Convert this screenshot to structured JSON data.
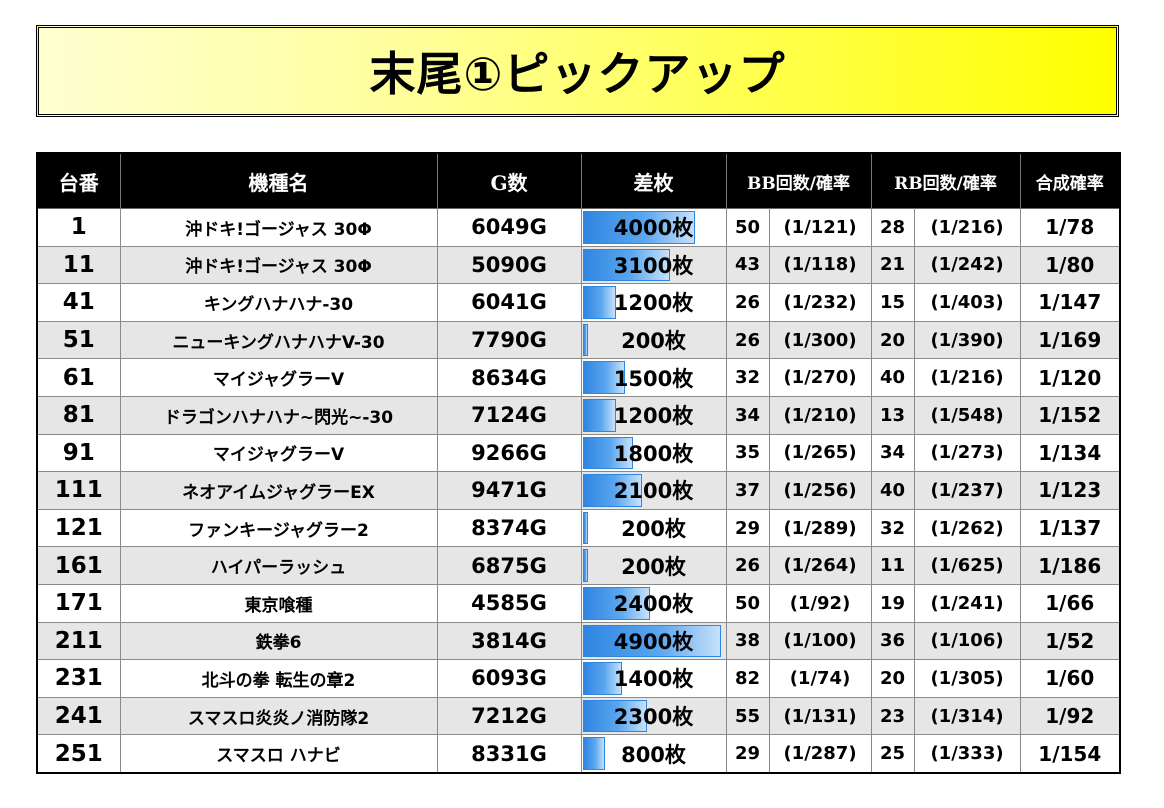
{
  "title": "末尾①ピックアップ",
  "headers": {
    "no": "台番",
    "name": "機種名",
    "games": "G数",
    "diff": "差枚",
    "bb": "BB回数/確率",
    "rb": "RB回数/確率",
    "combined": "合成確率"
  },
  "diff_max": 4900,
  "rows": [
    {
      "no": "1",
      "name": "沖ドキ!ゴージャス 30Φ",
      "games": "6049G",
      "diff": "4000枚",
      "diff_value": 4000,
      "bb_count": "50",
      "bb_rate": "(1/121)",
      "rb_count": "28",
      "rb_rate": "(1/216)",
      "combined": "1/78"
    },
    {
      "no": "11",
      "name": "沖ドキ!ゴージャス 30Φ",
      "games": "5090G",
      "diff": "3100枚",
      "diff_value": 3100,
      "bb_count": "43",
      "bb_rate": "(1/118)",
      "rb_count": "21",
      "rb_rate": "(1/242)",
      "combined": "1/80"
    },
    {
      "no": "41",
      "name": "キングハナハナ-30",
      "games": "6041G",
      "diff": "1200枚",
      "diff_value": 1200,
      "bb_count": "26",
      "bb_rate": "(1/232)",
      "rb_count": "15",
      "rb_rate": "(1/403)",
      "combined": "1/147"
    },
    {
      "no": "51",
      "name": "ニューキングハナハナV-30",
      "games": "7790G",
      "diff": "200枚",
      "diff_value": 200,
      "bb_count": "26",
      "bb_rate": "(1/300)",
      "rb_count": "20",
      "rb_rate": "(1/390)",
      "combined": "1/169"
    },
    {
      "no": "61",
      "name": "マイジャグラーV",
      "games": "8634G",
      "diff": "1500枚",
      "diff_value": 1500,
      "bb_count": "32",
      "bb_rate": "(1/270)",
      "rb_count": "40",
      "rb_rate": "(1/216)",
      "combined": "1/120"
    },
    {
      "no": "81",
      "name": "ドラゴンハナハナ~閃光~-30",
      "games": "7124G",
      "diff": "1200枚",
      "diff_value": 1200,
      "bb_count": "34",
      "bb_rate": "(1/210)",
      "rb_count": "13",
      "rb_rate": "(1/548)",
      "combined": "1/152"
    },
    {
      "no": "91",
      "name": "マイジャグラーV",
      "games": "9266G",
      "diff": "1800枚",
      "diff_value": 1800,
      "bb_count": "35",
      "bb_rate": "(1/265)",
      "rb_count": "34",
      "rb_rate": "(1/273)",
      "combined": "1/134"
    },
    {
      "no": "111",
      "name": "ネオアイムジャグラーEX",
      "games": "9471G",
      "diff": "2100枚",
      "diff_value": 2100,
      "bb_count": "37",
      "bb_rate": "(1/256)",
      "rb_count": "40",
      "rb_rate": "(1/237)",
      "combined": "1/123"
    },
    {
      "no": "121",
      "name": "ファンキージャグラー2",
      "games": "8374G",
      "diff": "200枚",
      "diff_value": 200,
      "bb_count": "29",
      "bb_rate": "(1/289)",
      "rb_count": "32",
      "rb_rate": "(1/262)",
      "combined": "1/137"
    },
    {
      "no": "161",
      "name": "ハイパーラッシュ",
      "games": "6875G",
      "diff": "200枚",
      "diff_value": 200,
      "bb_count": "26",
      "bb_rate": "(1/264)",
      "rb_count": "11",
      "rb_rate": "(1/625)",
      "combined": "1/186"
    },
    {
      "no": "171",
      "name": "東京喰種",
      "games": "4585G",
      "diff": "2400枚",
      "diff_value": 2400,
      "bb_count": "50",
      "bb_rate": "(1/92)",
      "rb_count": "19",
      "rb_rate": "(1/241)",
      "combined": "1/66"
    },
    {
      "no": "211",
      "name": "鉄拳6",
      "games": "3814G",
      "diff": "4900枚",
      "diff_value": 4900,
      "bb_count": "38",
      "bb_rate": "(1/100)",
      "rb_count": "36",
      "rb_rate": "(1/106)",
      "combined": "1/52"
    },
    {
      "no": "231",
      "name": "北斗の拳 転生の章2",
      "games": "6093G",
      "diff": "1400枚",
      "diff_value": 1400,
      "bb_count": "82",
      "bb_rate": "(1/74)",
      "rb_count": "20",
      "rb_rate": "(1/305)",
      "combined": "1/60"
    },
    {
      "no": "241",
      "name": "スマスロ炎炎ノ消防隊2",
      "games": "7212G",
      "diff": "2300枚",
      "diff_value": 2300,
      "bb_count": "55",
      "bb_rate": "(1/131)",
      "rb_count": "23",
      "rb_rate": "(1/314)",
      "combined": "1/92"
    },
    {
      "no": "251",
      "name": "スマスロ ハナビ",
      "games": "8331G",
      "diff": "800枚",
      "diff_value": 800,
      "bb_count": "29",
      "bb_rate": "(1/287)",
      "rb_count": "25",
      "rb_rate": "(1/333)",
      "combined": "1/154"
    }
  ]
}
